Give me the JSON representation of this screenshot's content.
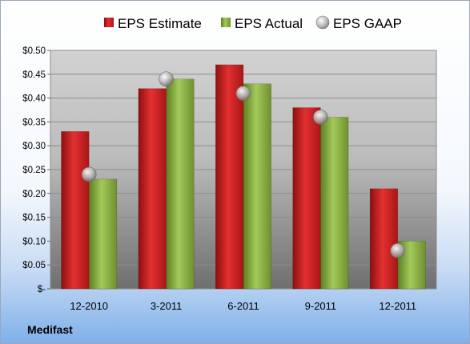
{
  "company": "Medifast",
  "chart_data": {
    "type": "bar",
    "categories": [
      "12-2010",
      "3-2011",
      "6-2011",
      "9-2011",
      "12-2011"
    ],
    "series": [
      {
        "name": "EPS Estimate",
        "type": "bar",
        "color": "#cc1f1f",
        "values": [
          0.33,
          0.42,
          0.47,
          0.38,
          0.21
        ]
      },
      {
        "name": "EPS Actual",
        "type": "bar",
        "color": "#8ab040",
        "values": [
          0.23,
          0.44,
          0.43,
          0.36,
          0.1
        ]
      },
      {
        "name": "EPS GAAP",
        "type": "marker",
        "color": "#b8b8b8",
        "values": [
          0.24,
          0.44,
          0.41,
          0.36,
          0.08
        ]
      }
    ],
    "yticks": [
      "$-",
      "$0.05",
      "$0.10",
      "$0.15",
      "$0.20",
      "$0.25",
      "$0.30",
      "$0.35",
      "$0.40",
      "$0.45",
      "$0.50"
    ],
    "ylim": [
      0,
      0.5
    ],
    "grid": true,
    "legend_position": "top",
    "title": "",
    "xlabel": "",
    "ylabel": ""
  }
}
